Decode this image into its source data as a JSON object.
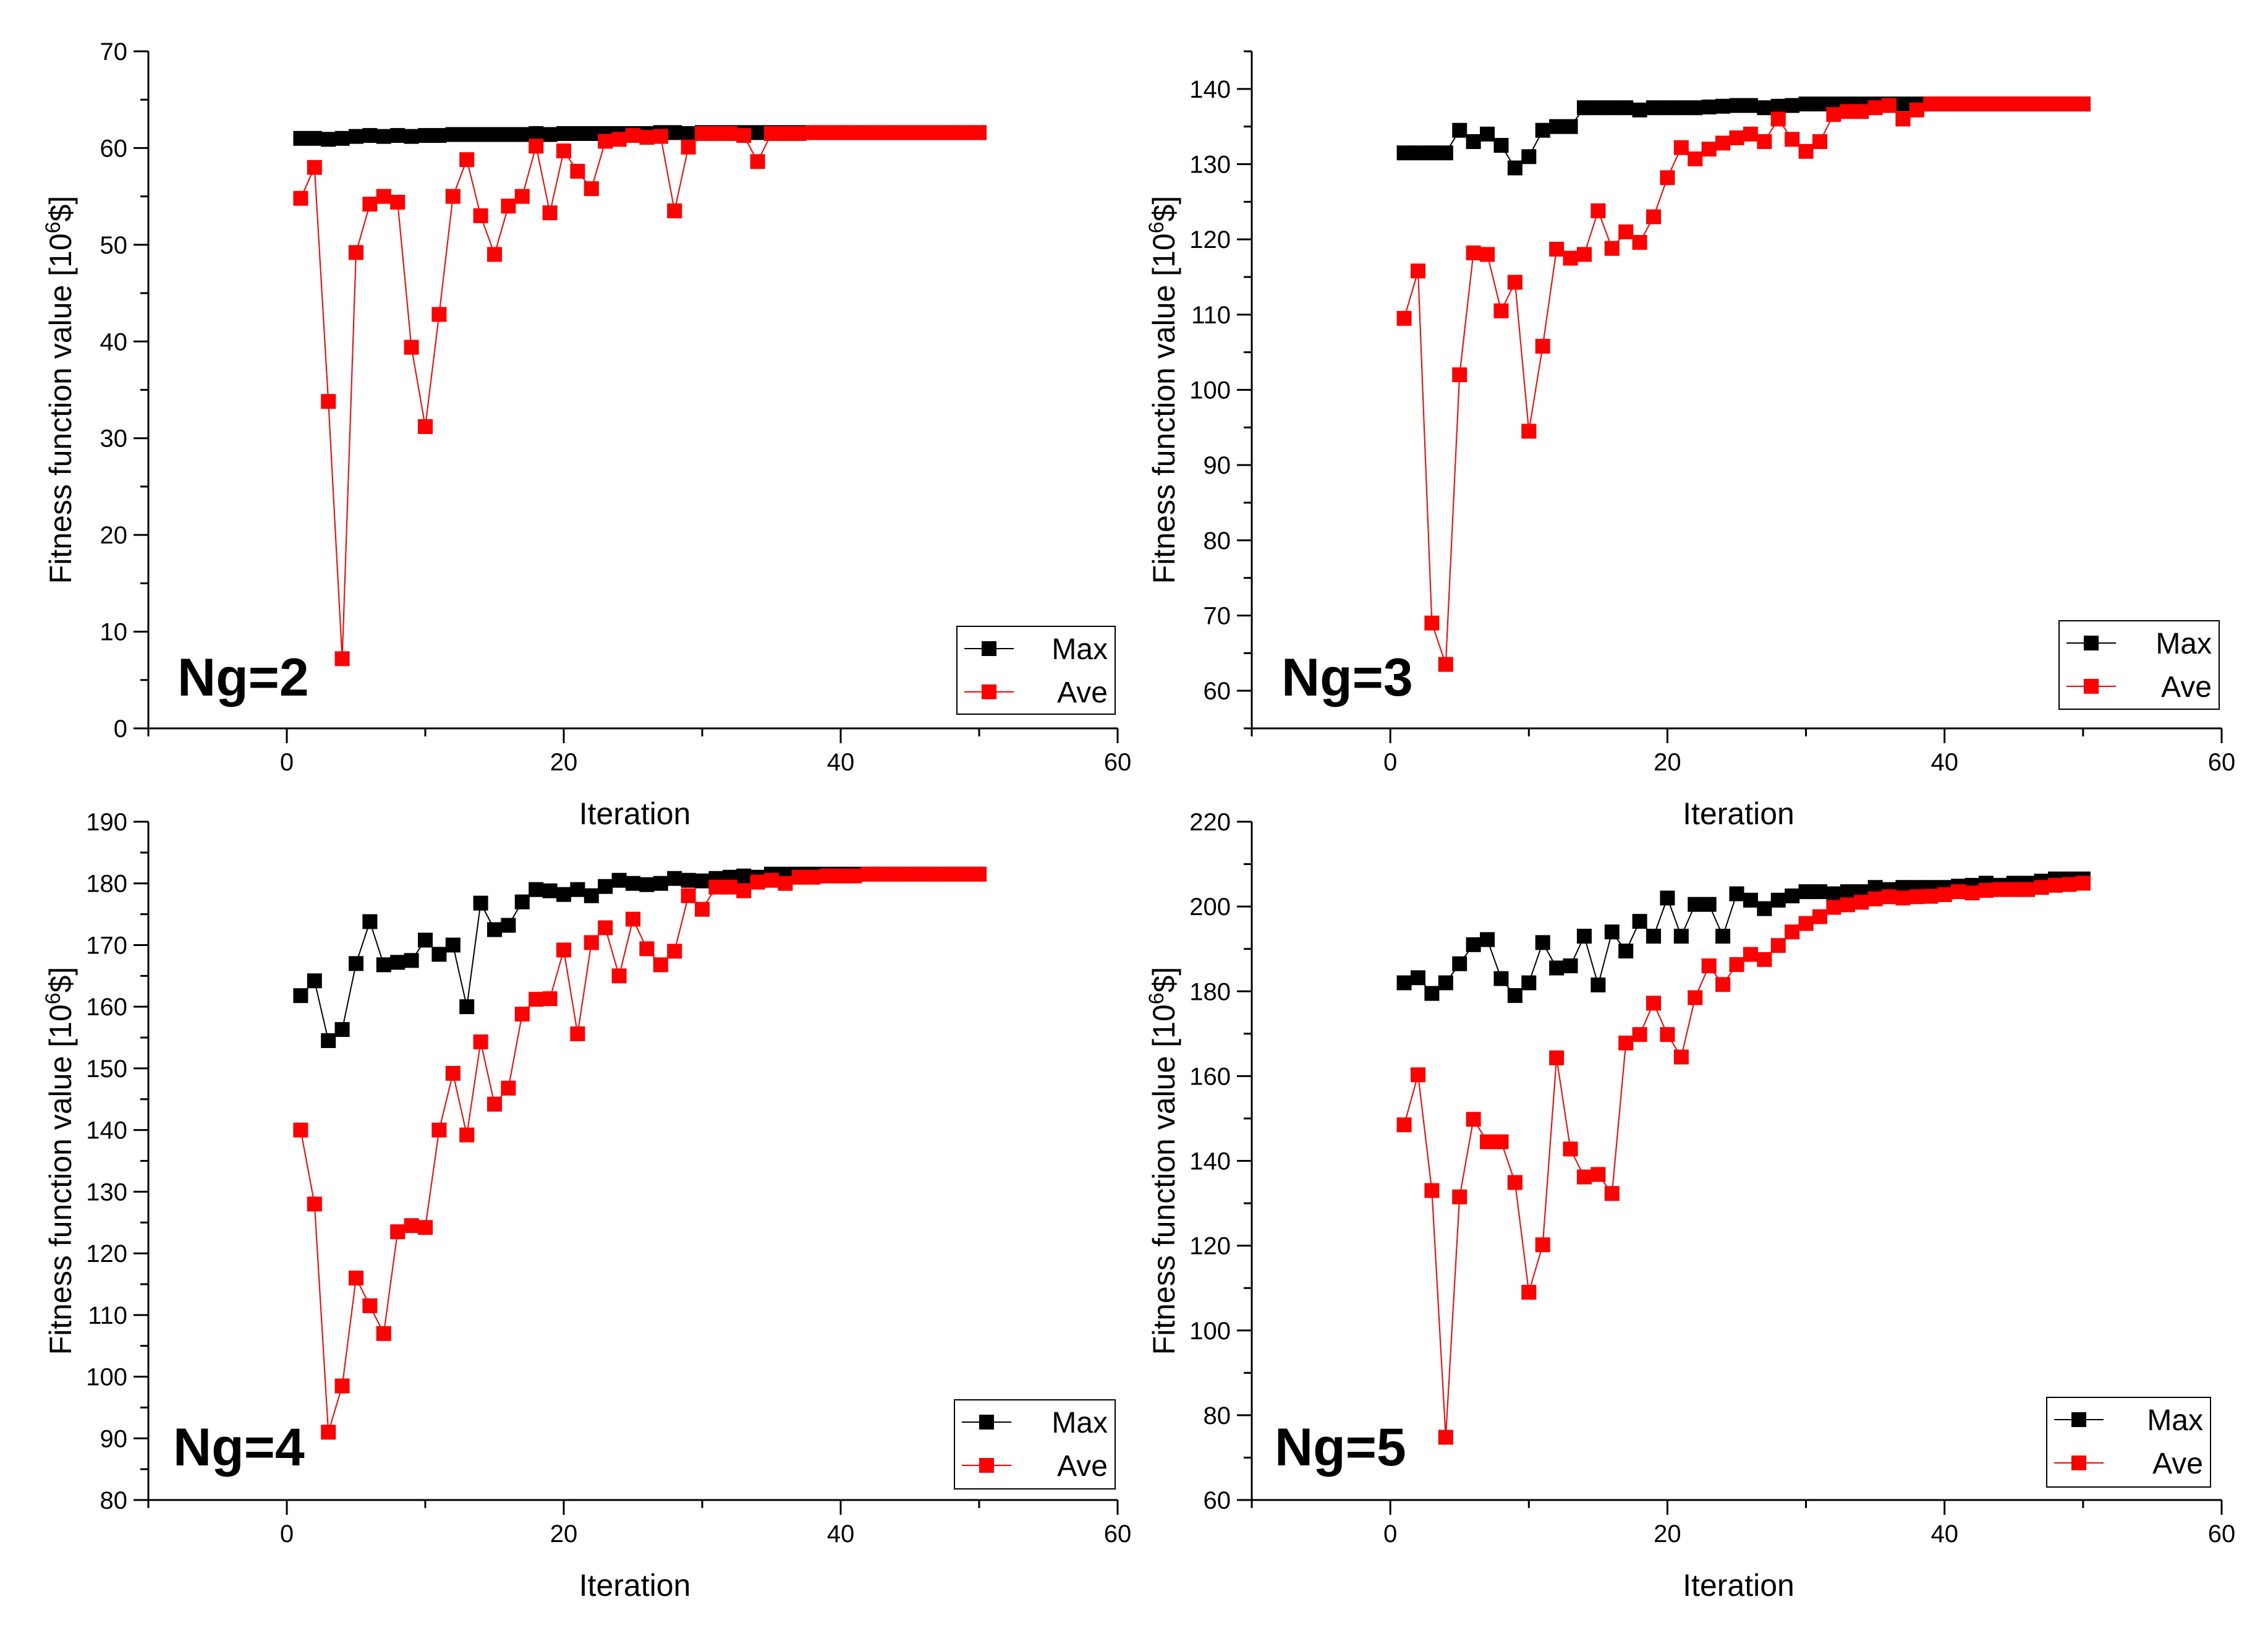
{
  "figure": {
    "xlabel": "Iteration",
    "ylabel": "Fitness function value [10",
    "ylabel_sup": "6",
    "ylabel_tail": "$]"
  },
  "legend": {
    "max_label": "Max",
    "ave_label": "Ave"
  },
  "colors": {
    "max": "#000000",
    "ave": "#ff0000",
    "axis": "#000000"
  },
  "chart_data": [
    {
      "type": "line",
      "panel_label": "Ng=2",
      "xlabel": "Iteration",
      "ylabel": "Fitness function value [10^6$]",
      "xlim": [
        -10,
        60
      ],
      "ylim": [
        0,
        70
      ],
      "xticks": [
        0,
        20,
        40,
        60
      ],
      "yticks": [
        0,
        10,
        20,
        30,
        40,
        50,
        60,
        70
      ],
      "legend_position": "bottom-right",
      "x": [
        1,
        2,
        3,
        4,
        5,
        6,
        7,
        8,
        9,
        10,
        11,
        12,
        13,
        14,
        15,
        16,
        17,
        18,
        19,
        20,
        21,
        22,
        23,
        24,
        25,
        26,
        27,
        28,
        29,
        30,
        31,
        32,
        33,
        34,
        35,
        36,
        37,
        38,
        39,
        40,
        41,
        42,
        43,
        44,
        45,
        46,
        47,
        48,
        49,
        50
      ],
      "series": [
        {
          "name": "Max",
          "values": [
            61,
            61,
            60.9,
            61,
            61.2,
            61.3,
            61.2,
            61.3,
            61.2,
            61.3,
            61.3,
            61.4,
            61.4,
            61.4,
            61.4,
            61.4,
            61.4,
            61.5,
            61.4,
            61.5,
            61.5,
            61.5,
            61.5,
            61.5,
            61.5,
            61.5,
            61.6,
            61.6,
            61.5,
            61.6,
            61.6,
            61.6,
            61.6,
            61.6,
            61.6,
            61.6,
            61.6,
            61.6,
            61.6,
            61.6,
            61.6,
            61.6,
            61.6,
            61.6,
            61.6,
            61.6,
            61.6,
            61.6,
            61.6,
            61.6
          ]
        },
        {
          "name": "Ave",
          "values": [
            54.8,
            58,
            33.8,
            7.2,
            49.2,
            54.2,
            55,
            54.4,
            39.4,
            31.2,
            42.8,
            55,
            58.8,
            53,
            49,
            54,
            55,
            60.2,
            53.3,
            59.7,
            57.6,
            55.8,
            60.7,
            60.9,
            61.3,
            61.1,
            61.2,
            53.5,
            60.1,
            61.5,
            61.5,
            61.5,
            61.3,
            58.6,
            61.5,
            61.5,
            61.5,
            61.6,
            61.6,
            61.6,
            61.6,
            61.6,
            61.6,
            61.6,
            61.6,
            61.6,
            61.6,
            61.6,
            61.6,
            61.6
          ]
        }
      ]
    },
    {
      "type": "line",
      "panel_label": "Ng=3",
      "xlabel": "Iteration",
      "ylabel": "Fitness function value [10^6$]",
      "xlim": [
        -10,
        60
      ],
      "ylim": [
        55,
        145
      ],
      "xticks": [
        0,
        20,
        40,
        60
      ],
      "yticks": [
        60,
        70,
        80,
        90,
        100,
        110,
        120,
        130,
        140
      ],
      "legend_position": "bottom-right",
      "x": [
        1,
        2,
        3,
        4,
        5,
        6,
        7,
        8,
        9,
        10,
        11,
        12,
        13,
        14,
        15,
        16,
        17,
        18,
        19,
        20,
        21,
        22,
        23,
        24,
        25,
        26,
        27,
        28,
        29,
        30,
        31,
        32,
        33,
        34,
        35,
        36,
        37,
        38,
        39,
        40,
        41,
        42,
        43,
        44,
        45,
        46,
        47,
        48,
        49,
        50
      ],
      "series": [
        {
          "name": "Max",
          "values": [
            131.5,
            131.5,
            131.5,
            131.5,
            134.5,
            133,
            134,
            132.5,
            129.5,
            131,
            134.5,
            135,
            135,
            137.5,
            137.5,
            137.5,
            137.5,
            137.2,
            137.5,
            137.5,
            137.5,
            137.5,
            137.6,
            137.7,
            137.8,
            137.8,
            137.5,
            137.7,
            137.8,
            138,
            138,
            138,
            138,
            138,
            138,
            138,
            138,
            138,
            138,
            138,
            138,
            138,
            138,
            138,
            138,
            138,
            138,
            138,
            138,
            138
          ]
        },
        {
          "name": "Ave",
          "values": [
            109.5,
            115.8,
            69,
            63.5,
            102,
            118.2,
            118,
            110.5,
            114.3,
            94.5,
            105.8,
            118.7,
            117.5,
            118,
            123.8,
            118.8,
            121,
            119.6,
            123,
            128.2,
            132.2,
            130.7,
            132,
            132.8,
            133.5,
            134,
            133,
            136,
            133.3,
            131.7,
            133,
            136.6,
            137,
            137,
            137.5,
            137.8,
            136,
            137.2,
            138,
            138,
            138,
            138,
            138,
            138,
            138,
            138,
            138,
            138,
            138,
            138
          ]
        }
      ]
    },
    {
      "type": "line",
      "panel_label": "Ng=4",
      "xlabel": "Iteration",
      "ylabel": "Fitness function value [10^6$]",
      "xlim": [
        -10,
        60
      ],
      "ylim": [
        80,
        190
      ],
      "xticks": [
        0,
        20,
        40,
        60
      ],
      "yticks": [
        80,
        90,
        100,
        110,
        120,
        130,
        140,
        150,
        160,
        170,
        180,
        190
      ],
      "legend_position": "bottom-right",
      "x": [
        1,
        2,
        3,
        4,
        5,
        6,
        7,
        8,
        9,
        10,
        11,
        12,
        13,
        14,
        15,
        16,
        17,
        18,
        19,
        20,
        21,
        22,
        23,
        24,
        25,
        26,
        27,
        28,
        29,
        30,
        31,
        32,
        33,
        34,
        35,
        36,
        37,
        38,
        39,
        40,
        41,
        42,
        43,
        44,
        45,
        46,
        47,
        48,
        49,
        50
      ],
      "series": [
        {
          "name": "Max",
          "values": [
            161.8,
            164.2,
            154.5,
            156.3,
            167,
            173.8,
            166.8,
            167.2,
            167.5,
            170.8,
            168.5,
            170,
            160,
            176.8,
            172.5,
            173.2,
            177,
            179,
            178.8,
            178.2,
            179,
            178,
            179.5,
            180.5,
            180,
            179.8,
            180,
            180.8,
            180.5,
            180.4,
            180.8,
            181,
            181.2,
            181,
            181.5,
            181.5,
            181.5,
            181.5,
            181.5,
            181.5,
            181.5,
            181.5,
            181.5,
            181.5,
            181.5,
            181.5,
            181.5,
            181.5,
            181.5,
            181.5
          ]
        },
        {
          "name": "Ave",
          "values": [
            140,
            128,
            91,
            98.5,
            116,
            111.5,
            107,
            123.5,
            124.5,
            124.2,
            140,
            149.2,
            139.2,
            154.3,
            144.2,
            146.8,
            158.8,
            161.2,
            161.3,
            169.2,
            155.6,
            170.4,
            172.8,
            165,
            174.2,
            169.4,
            166.8,
            169,
            178,
            175.8,
            179.4,
            179.4,
            178.8,
            180.2,
            180.5,
            180,
            181,
            181,
            181.2,
            181.2,
            181.2,
            181.5,
            181.5,
            181.5,
            181.5,
            181.5,
            181.5,
            181.5,
            181.5,
            181.5
          ]
        }
      ]
    },
    {
      "type": "line",
      "panel_label": "Ng=5",
      "xlabel": "Iteration",
      "ylabel": "Fitness function value [10^6$]",
      "xlim": [
        -10,
        60
      ],
      "ylim": [
        60,
        220
      ],
      "xticks": [
        0,
        20,
        40,
        60
      ],
      "yticks": [
        60,
        80,
        100,
        120,
        140,
        160,
        180,
        200,
        220
      ],
      "legend_position": "bottom-right",
      "x": [
        1,
        2,
        3,
        4,
        5,
        6,
        7,
        8,
        9,
        10,
        11,
        12,
        13,
        14,
        15,
        16,
        17,
        18,
        19,
        20,
        21,
        22,
        23,
        24,
        25,
        26,
        27,
        28,
        29,
        30,
        31,
        32,
        33,
        34,
        35,
        36,
        37,
        38,
        39,
        40,
        41,
        42,
        43,
        44,
        45,
        46,
        47,
        48,
        49,
        50
      ],
      "series": [
        {
          "name": "Max",
          "values": [
            182,
            183.2,
            179.5,
            182,
            186.5,
            191,
            192.2,
            183,
            179,
            182,
            191.5,
            185.5,
            186,
            193,
            181.5,
            194,
            189.5,
            196.5,
            193,
            202,
            193,
            200.5,
            200.5,
            193,
            203,
            201.5,
            199.5,
            201.5,
            202.5,
            203.5,
            203.5,
            203,
            203.5,
            203.5,
            204.5,
            204,
            204.5,
            204.5,
            204.5,
            204.5,
            204.8,
            205,
            205.5,
            205,
            205.5,
            205.5,
            206,
            206.5,
            206.5,
            206.5
          ]
        },
        {
          "name": "Ave",
          "values": [
            148.5,
            160.3,
            133,
            74.8,
            131.5,
            149.8,
            144.5,
            144.5,
            134.9,
            109,
            120.2,
            164.3,
            142.8,
            136.2,
            136.8,
            132.3,
            167.8,
            169.8,
            177.2,
            169.8,
            164.5,
            178.5,
            186,
            181.6,
            186.3,
            188.7,
            187.5,
            190.8,
            194,
            196,
            197.6,
            199.8,
            200.4,
            201,
            201.8,
            202.3,
            202,
            202.3,
            202.4,
            202.8,
            203.5,
            203.2,
            203.8,
            204,
            204,
            204,
            204.5,
            205,
            205.2,
            205.5
          ]
        }
      ]
    }
  ]
}
